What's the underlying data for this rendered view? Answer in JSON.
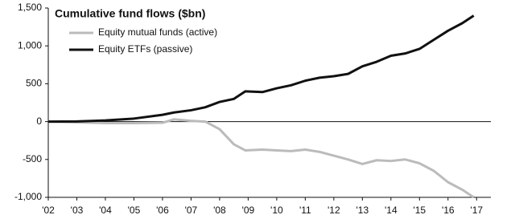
{
  "chart_data": {
    "type": "line",
    "title": "Cumulative fund flows ($bn)",
    "x": [
      2002,
      2003,
      2004,
      2005,
      2006,
      2006.4,
      2007,
      2007.5,
      2008,
      2008.5,
      2008.9,
      2009.5,
      2010,
      2010.5,
      2011,
      2011.5,
      2012,
      2012.5,
      2013,
      2013.5,
      2014,
      2014.5,
      2015,
      2015.5,
      2016,
      2016.5,
      2016.9
    ],
    "series": [
      {
        "name": "Equity mutual funds (active)",
        "color": "#bbbbbb",
        "values": [
          0,
          -10,
          -20,
          -20,
          -15,
          30,
          10,
          0,
          -100,
          -300,
          -380,
          -370,
          -380,
          -390,
          -370,
          -400,
          -450,
          -500,
          -560,
          -510,
          -520,
          -500,
          -550,
          -650,
          -800,
          -900,
          -1000
        ]
      },
      {
        "name": "Equity ETFs (passive)",
        "color": "#111111",
        "values": [
          0,
          3,
          15,
          40,
          90,
          120,
          150,
          190,
          260,
          300,
          400,
          390,
          440,
          480,
          540,
          580,
          600,
          630,
          730,
          790,
          870,
          900,
          960,
          1080,
          1200,
          1300,
          1400
        ]
      }
    ],
    "xlim": [
      2002,
      2017.5
    ],
    "xticks": [
      {
        "value": 2002,
        "label": "'02"
      },
      {
        "value": 2003,
        "label": "'03"
      },
      {
        "value": 2004,
        "label": "'04"
      },
      {
        "value": 2005,
        "label": "'05"
      },
      {
        "value": 2006,
        "label": "'06"
      },
      {
        "value": 2007,
        "label": "'07"
      },
      {
        "value": 2008,
        "label": "'08"
      },
      {
        "value": 2009,
        "label": "'09"
      },
      {
        "value": 2010,
        "label": "'10"
      },
      {
        "value": 2011,
        "label": "'11"
      },
      {
        "value": 2012,
        "label": "'12"
      },
      {
        "value": 2013,
        "label": "'13"
      },
      {
        "value": 2014,
        "label": "'14"
      },
      {
        "value": 2015,
        "label": "'15"
      },
      {
        "value": 2016,
        "label": "'16"
      },
      {
        "value": 2017,
        "label": "'17"
      }
    ],
    "ylim": [
      -1000,
      1500
    ],
    "yticks": [
      {
        "value": 1500,
        "label": "1,500"
      },
      {
        "value": 1000,
        "label": "1,000"
      },
      500,
      0,
      -500,
      {
        "value": -1000,
        "label": "-1,000"
      }
    ],
    "legend": "top-left"
  }
}
